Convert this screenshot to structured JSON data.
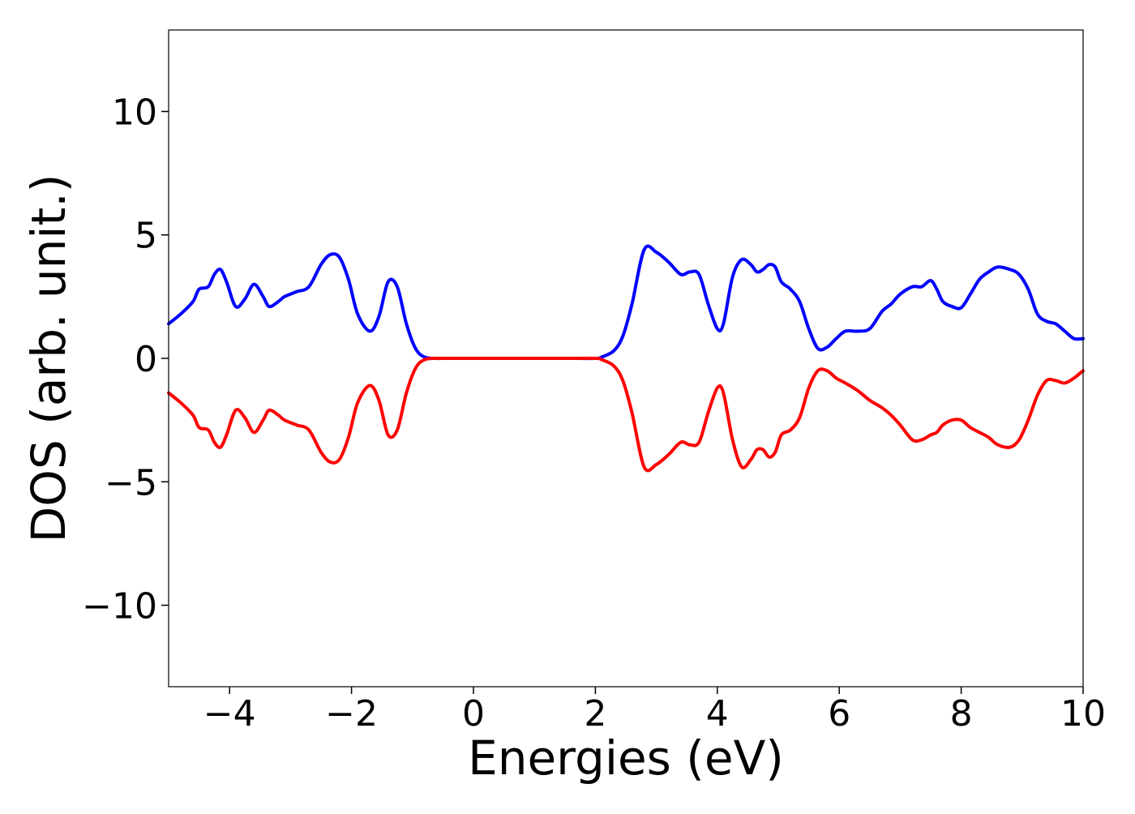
{
  "chart_data": {
    "type": "line",
    "title": "",
    "xlabel": "Energies (eV)",
    "ylabel": "DOS (arb. unit.)",
    "xlim": [
      -5,
      10
    ],
    "ylim": [
      -13.3,
      13.3
    ],
    "xticks": [
      -4,
      -2,
      0,
      2,
      4,
      6,
      8,
      10
    ],
    "xtick_labels": [
      "−4",
      "−2",
      "0",
      "2",
      "4",
      "6",
      "8",
      "10"
    ],
    "yticks": [
      10,
      5,
      0,
      -5,
      -10
    ],
    "ytick_labels": [
      "10",
      "5",
      "0",
      "−5",
      "−10"
    ],
    "grid": false,
    "legend": "none",
    "series": [
      {
        "color": "#0000ff",
        "x": [
          -5.0,
          -4.8,
          -4.6,
          -4.5,
          -4.35,
          -4.25,
          -4.15,
          -4.05,
          -3.9,
          -3.75,
          -3.6,
          -3.45,
          -3.35,
          -3.2,
          -3.1,
          -2.9,
          -2.7,
          -2.5,
          -2.35,
          -2.2,
          -2.05,
          -1.9,
          -1.7,
          -1.55,
          -1.4,
          -1.25,
          -1.1,
          -0.95,
          -0.8,
          -0.6,
          -0.5,
          0.0,
          0.5,
          1.0,
          1.5,
          2.0,
          2.1,
          2.3,
          2.45,
          2.6,
          2.8,
          3.0,
          3.2,
          3.4,
          3.55,
          3.7,
          3.85,
          4.0,
          4.1,
          4.25,
          4.4,
          4.55,
          4.65,
          4.75,
          4.85,
          4.95,
          5.05,
          5.2,
          5.35,
          5.5,
          5.65,
          5.8,
          5.95,
          6.1,
          6.3,
          6.5,
          6.7,
          6.85,
          7.0,
          7.2,
          7.35,
          7.5,
          7.6,
          7.7,
          7.85,
          8.0,
          8.15,
          8.3,
          8.45,
          8.6,
          8.8,
          8.95,
          9.1,
          9.25,
          9.4,
          9.55,
          9.7,
          9.85,
          10.0
        ],
        "values": [
          1.4,
          1.8,
          2.3,
          2.8,
          2.9,
          3.4,
          3.6,
          3.1,
          2.1,
          2.4,
          3.0,
          2.5,
          2.1,
          2.3,
          2.5,
          2.7,
          2.9,
          3.8,
          4.2,
          4.1,
          3.2,
          1.8,
          1.1,
          1.7,
          3.1,
          2.9,
          1.4,
          0.4,
          0.05,
          0.0,
          0.0,
          0.0,
          0.0,
          0.0,
          0.0,
          0.0,
          0.05,
          0.3,
          0.9,
          2.2,
          4.4,
          4.3,
          3.9,
          3.4,
          3.5,
          3.4,
          2.2,
          1.2,
          1.4,
          3.3,
          4.0,
          3.8,
          3.5,
          3.6,
          3.8,
          3.7,
          3.1,
          2.8,
          2.3,
          1.2,
          0.4,
          0.45,
          0.8,
          1.1,
          1.1,
          1.2,
          1.9,
          2.2,
          2.6,
          2.9,
          2.9,
          3.15,
          2.8,
          2.3,
          2.1,
          2.05,
          2.6,
          3.2,
          3.5,
          3.7,
          3.6,
          3.4,
          2.8,
          1.8,
          1.5,
          1.4,
          1.1,
          0.8,
          0.8
        ]
      },
      {
        "color": "#ff0000",
        "x": [
          -5.0,
          -4.8,
          -4.6,
          -4.5,
          -4.35,
          -4.25,
          -4.15,
          -4.05,
          -3.9,
          -3.75,
          -3.6,
          -3.45,
          -3.35,
          -3.2,
          -3.1,
          -2.9,
          -2.7,
          -2.5,
          -2.35,
          -2.2,
          -2.05,
          -1.9,
          -1.7,
          -1.55,
          -1.4,
          -1.25,
          -1.1,
          -0.95,
          -0.8,
          -0.6,
          -0.5,
          0.0,
          0.5,
          1.0,
          1.5,
          2.0,
          2.1,
          2.3,
          2.45,
          2.6,
          2.8,
          3.0,
          3.2,
          3.4,
          3.55,
          3.7,
          3.85,
          4.0,
          4.1,
          4.25,
          4.4,
          4.55,
          4.65,
          4.75,
          4.85,
          4.95,
          5.05,
          5.2,
          5.35,
          5.5,
          5.65,
          5.8,
          5.95,
          6.1,
          6.3,
          6.5,
          6.7,
          6.85,
          7.0,
          7.2,
          7.35,
          7.5,
          7.6,
          7.7,
          7.85,
          8.0,
          8.15,
          8.3,
          8.45,
          8.6,
          8.8,
          8.95,
          9.1,
          9.25,
          9.4,
          9.55,
          9.7,
          9.85,
          10.0
        ],
        "values": [
          -1.4,
          -1.8,
          -2.3,
          -2.8,
          -2.9,
          -3.4,
          -3.6,
          -3.1,
          -2.1,
          -2.4,
          -3.0,
          -2.5,
          -2.1,
          -2.3,
          -2.5,
          -2.7,
          -2.9,
          -3.8,
          -4.2,
          -4.1,
          -3.2,
          -1.8,
          -1.1,
          -1.7,
          -3.1,
          -2.9,
          -1.4,
          -0.4,
          -0.05,
          0.0,
          0.0,
          0.0,
          0.0,
          0.0,
          0.0,
          0.0,
          -0.05,
          -0.3,
          -0.9,
          -2.2,
          -4.4,
          -4.3,
          -3.9,
          -3.4,
          -3.5,
          -3.4,
          -2.2,
          -1.2,
          -1.4,
          -3.3,
          -4.4,
          -4.1,
          -3.7,
          -3.7,
          -4.0,
          -3.8,
          -3.1,
          -2.9,
          -2.4,
          -1.2,
          -0.5,
          -0.5,
          -0.8,
          -1.0,
          -1.3,
          -1.7,
          -2.0,
          -2.3,
          -2.7,
          -3.3,
          -3.3,
          -3.1,
          -3.0,
          -2.7,
          -2.5,
          -2.5,
          -2.8,
          -3.0,
          -3.2,
          -3.5,
          -3.6,
          -3.3,
          -2.5,
          -1.5,
          -0.9,
          -0.9,
          -1.0,
          -0.8,
          -0.5
        ]
      }
    ]
  }
}
